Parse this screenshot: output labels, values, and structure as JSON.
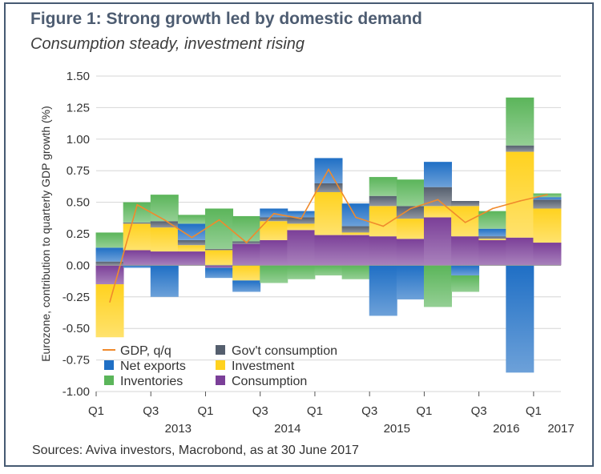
{
  "title": "Figure 1: Strong growth led by domestic demand",
  "subtitle": "Consumption steady, investment rising",
  "source": "Sources: Aviva investors, Macrobond, as at 30 June 2017",
  "chart_data": {
    "type": "bar",
    "stacked": true,
    "ylabel": "Eurozone, contribution to quarterly GDP growth (%)",
    "ylim": [
      -1.0,
      1.5
    ],
    "yticks": [
      -1.0,
      -0.75,
      -0.5,
      -0.25,
      0.0,
      0.25,
      0.5,
      0.75,
      1.0,
      1.25,
      1.5
    ],
    "ytick_labels": [
      "-1.00",
      "-0.75",
      "-0.50",
      "-0.25",
      "0.00",
      "0.25",
      "0.50",
      "0.75",
      "1.00",
      "1.25",
      "1.50"
    ],
    "categories": [
      "2013Q1",
      "2013Q2",
      "2013Q3",
      "2013Q4",
      "2014Q1",
      "2014Q2",
      "2014Q3",
      "2014Q4",
      "2015Q1",
      "2015Q2",
      "2015Q3",
      "2015Q4",
      "2016Q1",
      "2016Q2",
      "2016Q3",
      "2016Q4",
      "2017Q1"
    ],
    "x_tick_labels": [
      {
        "index": 0,
        "quarter": "Q1",
        "year": ""
      },
      {
        "index": 2,
        "quarter": "Q3",
        "year": "2013"
      },
      {
        "index": 4,
        "quarter": "Q1",
        "year": ""
      },
      {
        "index": 6,
        "quarter": "Q3",
        "year": "2014"
      },
      {
        "index": 8,
        "quarter": "Q1",
        "year": ""
      },
      {
        "index": 10,
        "quarter": "Q3",
        "year": "2015"
      },
      {
        "index": 12,
        "quarter": "Q1",
        "year": ""
      },
      {
        "index": 14,
        "quarter": "Q3",
        "year": "2016"
      },
      {
        "index": 16,
        "quarter": "Q1",
        "year": "2017"
      }
    ],
    "grid": "horizontal",
    "legend_position": "bottom-left",
    "series": [
      {
        "name": "Consumption",
        "color": "#7b3f98",
        "values": [
          -0.15,
          0.12,
          0.11,
          0.11,
          -0.02,
          0.17,
          0.2,
          0.28,
          0.24,
          0.24,
          0.23,
          0.21,
          0.38,
          0.23,
          0.2,
          0.22,
          0.18
        ]
      },
      {
        "name": "Investment",
        "color": "#ffd21f",
        "values": [
          -0.42,
          0.21,
          0.19,
          0.05,
          0.12,
          -0.12,
          0.15,
          0.05,
          0.34,
          0.02,
          0.24,
          0.16,
          0.09,
          0.24,
          0.01,
          0.68,
          0.27
        ]
      },
      {
        "name": "Gov't consumption",
        "color": "#555f6e",
        "values": [
          0.03,
          0.01,
          0.05,
          0.04,
          0.01,
          0.02,
          0.03,
          0.05,
          0.07,
          0.05,
          0.08,
          0.1,
          0.15,
          0.04,
          0.02,
          0.05,
          0.07
        ]
      },
      {
        "name": "Net exports",
        "color": "#1f6fc5",
        "values": [
          0.11,
          -0.02,
          -0.25,
          0.13,
          -0.08,
          -0.09,
          0.07,
          0.05,
          0.2,
          0.18,
          -0.4,
          -0.27,
          0.2,
          -0.08,
          0.06,
          -0.85,
          0.02
        ]
      },
      {
        "name": "Inventories",
        "color": "#5bb55a",
        "values": [
          0.12,
          0.16,
          0.21,
          0.07,
          0.32,
          0.2,
          -0.14,
          -0.11,
          -0.08,
          -0.11,
          0.15,
          0.21,
          -0.33,
          -0.13,
          0.14,
          0.38,
          0.03
        ]
      }
    ],
    "line": {
      "name": "GDP, q/q",
      "color": "#f08a2c",
      "values": [
        -0.29,
        0.48,
        0.36,
        0.22,
        0.36,
        0.18,
        0.41,
        0.37,
        0.76,
        0.38,
        0.31,
        0.45,
        0.52,
        0.34,
        0.45,
        0.51,
        0.56
      ]
    },
    "legend": [
      {
        "name": "GDP, q/q",
        "kind": "line",
        "color": "#f08a2c"
      },
      {
        "name": "Gov't consumption",
        "kind": "box",
        "color": "#555f6e"
      },
      {
        "name": "Net exports",
        "kind": "box",
        "color": "#1f6fc5"
      },
      {
        "name": "Investment",
        "kind": "box",
        "color": "#ffd21f"
      },
      {
        "name": "Inventories",
        "kind": "box",
        "color": "#5bb55a"
      },
      {
        "name": "Consumption",
        "kind": "box",
        "color": "#7b3f98"
      }
    ]
  }
}
